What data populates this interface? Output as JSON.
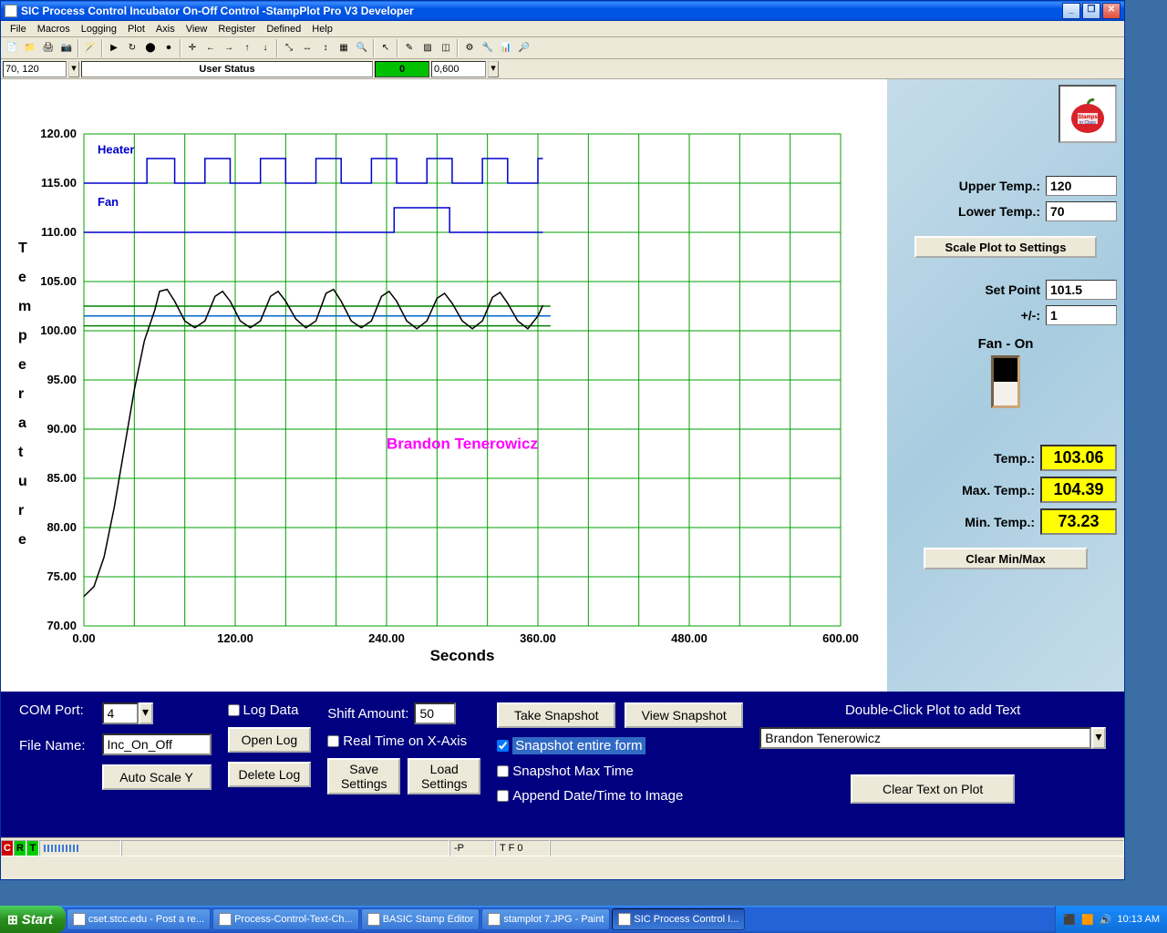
{
  "window": {
    "title": "SIC Process Control Incubator On-Off Control -StampPlot Pro V3 Developer"
  },
  "menubar": [
    "File",
    "Macros",
    "Logging",
    "Plot",
    "Axis",
    "View",
    "Register",
    "Defined",
    "Help"
  ],
  "toolbar2": {
    "coords": "70, 120",
    "status_label": "User Status",
    "indicator": "0",
    "range": "0,600"
  },
  "plot": {
    "y_label_chars": [
      "T",
      "e",
      "m",
      "p",
      "e",
      "r",
      "a",
      "t",
      "u",
      "r",
      "e"
    ],
    "x_label": "Seconds",
    "heater_label": "Heater",
    "fan_label": "Fan",
    "watermark": "Brandon Tenerowicz",
    "y_ticks": [
      70,
      75,
      80,
      85,
      90,
      95,
      100,
      105,
      110,
      115,
      120
    ],
    "x_ticks": [
      0,
      120,
      240,
      360,
      480,
      600
    ],
    "ref_lines": [
      {
        "y": 102.5,
        "color": "#008000"
      },
      {
        "y": 101.5,
        "color": "#0066cc"
      },
      {
        "y": 100.5,
        "color": "#008000"
      }
    ],
    "temperature_data": [
      [
        0,
        73
      ],
      [
        8,
        74
      ],
      [
        16,
        77
      ],
      [
        24,
        82
      ],
      [
        32,
        88
      ],
      [
        40,
        94
      ],
      [
        48,
        99
      ],
      [
        56,
        102
      ],
      [
        60,
        104
      ],
      [
        66,
        104.2
      ],
      [
        72,
        103
      ],
      [
        80,
        101
      ],
      [
        88,
        100.3
      ],
      [
        96,
        101
      ],
      [
        104,
        103.5
      ],
      [
        110,
        104
      ],
      [
        116,
        103
      ],
      [
        124,
        101
      ],
      [
        132,
        100.3
      ],
      [
        140,
        101
      ],
      [
        148,
        103.5
      ],
      [
        154,
        104
      ],
      [
        160,
        103
      ],
      [
        168,
        101.2
      ],
      [
        176,
        100.3
      ],
      [
        184,
        101
      ],
      [
        192,
        103.8
      ],
      [
        198,
        104.2
      ],
      [
        204,
        103
      ],
      [
        212,
        101
      ],
      [
        220,
        100.3
      ],
      [
        228,
        101
      ],
      [
        236,
        103.5
      ],
      [
        242,
        104
      ],
      [
        248,
        103
      ],
      [
        256,
        101
      ],
      [
        264,
        100.2
      ],
      [
        272,
        101
      ],
      [
        280,
        103.3
      ],
      [
        286,
        103.8
      ],
      [
        292,
        102.8
      ],
      [
        300,
        101
      ],
      [
        308,
        100.2
      ],
      [
        316,
        101
      ],
      [
        324,
        103.4
      ],
      [
        330,
        103.9
      ],
      [
        336,
        102.8
      ],
      [
        344,
        101
      ],
      [
        352,
        100.2
      ],
      [
        360,
        101.5
      ],
      [
        364,
        102.6
      ]
    ],
    "heater_data": [
      [
        0,
        0
      ],
      [
        50,
        0
      ],
      [
        50,
        1
      ],
      [
        72,
        1
      ],
      [
        72,
        0
      ],
      [
        96,
        0
      ],
      [
        96,
        1
      ],
      [
        116,
        1
      ],
      [
        116,
        0
      ],
      [
        140,
        0
      ],
      [
        140,
        1
      ],
      [
        160,
        1
      ],
      [
        160,
        0
      ],
      [
        184,
        0
      ],
      [
        184,
        1
      ],
      [
        204,
        1
      ],
      [
        204,
        0
      ],
      [
        228,
        0
      ],
      [
        228,
        1
      ],
      [
        248,
        1
      ],
      [
        248,
        0
      ],
      [
        272,
        0
      ],
      [
        272,
        1
      ],
      [
        292,
        1
      ],
      [
        292,
        0
      ],
      [
        316,
        0
      ],
      [
        316,
        1
      ],
      [
        336,
        1
      ],
      [
        336,
        0
      ],
      [
        360,
        0
      ],
      [
        360,
        1
      ],
      [
        364,
        1
      ]
    ],
    "fan_data": [
      [
        0,
        0
      ],
      [
        246,
        0
      ],
      [
        246,
        1
      ],
      [
        290,
        1
      ],
      [
        290,
        0
      ],
      [
        364,
        0
      ]
    ],
    "grid_color": "#00a000",
    "bg_color": "#ffffff"
  },
  "side": {
    "upper_temp_label": "Upper Temp.:",
    "upper_temp": "120",
    "lower_temp_label": "Lower Temp.:",
    "lower_temp": "70",
    "scale_btn": "Scale Plot to Settings",
    "setpoint_label": "Set Point",
    "setpoint": "101.5",
    "plusminus_label": "+/-:",
    "plusminus": "1",
    "fan_label": "Fan - On",
    "temp_label": "Temp.:",
    "temp": "103.06",
    "max_label": "Max. Temp.:",
    "max": "104.39",
    "min_label": "Min. Temp.:",
    "min": "73.23",
    "clear_btn": "Clear Min/Max"
  },
  "bottom": {
    "com_label": "COM Port:",
    "com_value": "4",
    "filename_label": "File Name:",
    "filename": "Inc_On_Off",
    "autoscale_btn": "Auto Scale Y",
    "logdata_label": "Log Data",
    "openlog_btn": "Open Log",
    "deletelog_btn": "Delete Log",
    "shift_label": "Shift Amount:",
    "shift_value": "50",
    "realtime_label": "Real Time on X-Axis",
    "save_btn": "Save Settings",
    "load_btn": "Load Settings",
    "snapshot_btn": "Take Snapshot",
    "view_btn": "View Snapshot",
    "snap_entire_label": "Snapshot entire form",
    "snap_max_label": "Snapshot Max Time",
    "append_label": "Append Date/Time to Image",
    "dblclick_label": "Double-Click Plot to add Text",
    "text_input": "Brandon Tenerowicz",
    "clear_text_btn": "Clear Text on Plot"
  },
  "statusbar": {
    "crt": [
      "C",
      "R",
      "T"
    ],
    "p": "-P",
    "tf": "T F 0"
  },
  "taskbar": {
    "start": "Start",
    "items": [
      {
        "label": "cset.stcc.edu - Post a re...",
        "active": false
      },
      {
        "label": "Process-Control-Text-Ch...",
        "active": false
      },
      {
        "label": "BASIC Stamp Editor",
        "active": false
      },
      {
        "label": "stamplot 7.JPG - Paint",
        "active": false
      },
      {
        "label": "SIC Process Control I...",
        "active": true
      }
    ],
    "time": "10:13 AM"
  }
}
